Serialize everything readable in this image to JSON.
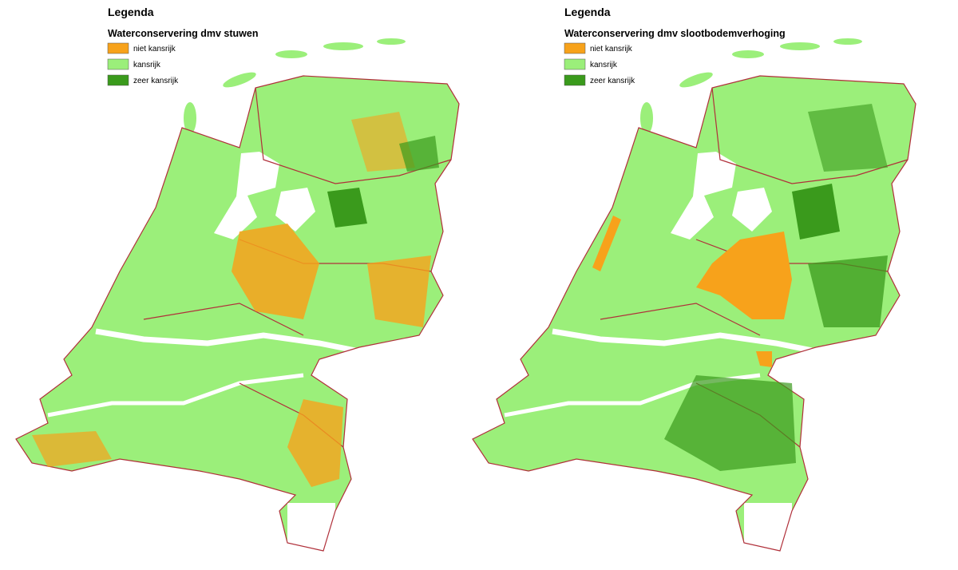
{
  "maps": [
    {
      "legend": {
        "title": "Legenda",
        "subtitle": "Waterconservering dmv stuwen",
        "items": [
          {
            "label": "niet kansrijk",
            "color": "#f7a21b"
          },
          {
            "label": "kansrijk",
            "color": "#9bef7a"
          },
          {
            "label": "zeer kansrijk",
            "color": "#3a9a1c"
          }
        ]
      }
    },
    {
      "legend": {
        "title": "Legenda",
        "subtitle": "Waterconservering dmv slootbodemverhoging",
        "items": [
          {
            "label": "niet kansrijk",
            "color": "#f7a21b"
          },
          {
            "label": "kansrijk",
            "color": "#9bef7a"
          },
          {
            "label": "zeer kansrijk",
            "color": "#3a9a1c"
          }
        ]
      }
    }
  ]
}
